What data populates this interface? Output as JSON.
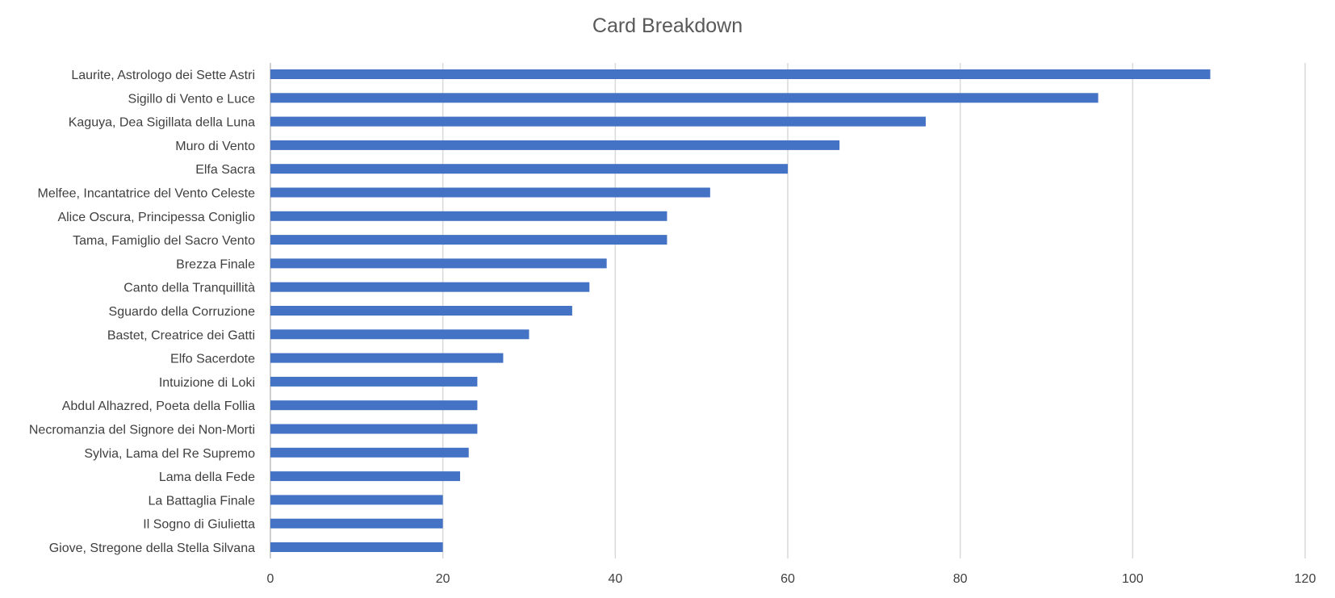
{
  "chart_data": {
    "type": "bar",
    "orientation": "horizontal",
    "title": "Card Breakdown",
    "xlabel": "",
    "ylabel": "",
    "xlim": [
      0,
      120
    ],
    "x_ticks": [
      0,
      20,
      40,
      60,
      80,
      100,
      120
    ],
    "grid": true,
    "legend": "none",
    "bar_color": "#4472C4",
    "categories": [
      "Laurite, Astrologo dei Sette Astri",
      "Sigillo di Vento e Luce",
      "Kaguya, Dea Sigillata della Luna",
      "Muro di Vento",
      "Elfa Sacra",
      "Melfee, Incantatrice del Vento Celeste",
      "Alice Oscura, Principessa Coniglio",
      "Tama, Famiglio del Sacro Vento",
      "Brezza Finale",
      "Canto della Tranquillità",
      "Sguardo della Corruzione",
      "Bastet, Creatrice dei Gatti",
      "Elfo Sacerdote",
      "Intuizione di Loki",
      "Abdul Alhazred, Poeta della Follia",
      "Necromanzia del Signore dei Non-Morti",
      "Sylvia, Lama del Re Supremo",
      "Lama della Fede",
      "La Battaglia Finale",
      "Il Sogno di Giulietta",
      "Giove, Stregone della Stella Silvana"
    ],
    "values": [
      109,
      96,
      76,
      66,
      60,
      51,
      46,
      46,
      39,
      37,
      35,
      30,
      27,
      24,
      24,
      24,
      23,
      22,
      20,
      20,
      20
    ]
  }
}
